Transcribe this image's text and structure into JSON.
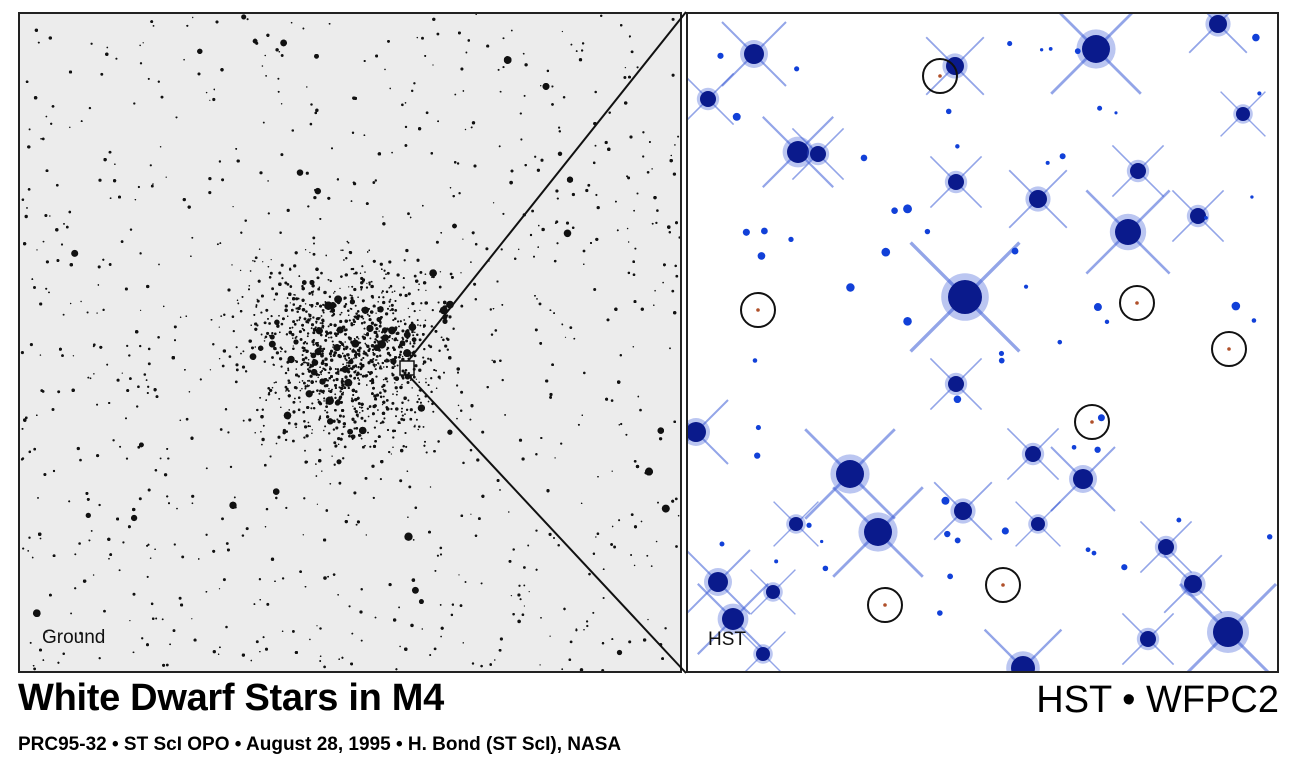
{
  "panels": {
    "ground_label": "Ground",
    "hst_label": "HST"
  },
  "caption": {
    "title": "White Dwarf Stars in M4",
    "instrument": "HST • WFPC2",
    "credit": "PRC95-32 • ST ScI OPO • August 28, 1995 • H. Bond (ST ScI), NASA"
  },
  "colors": {
    "ground_background": "#ececec",
    "ground_stars": "#111111",
    "hst_background": "#ffffff",
    "hst_stars": "#0a1a8c",
    "hst_halo": "#3b5bd6",
    "circle_stroke": "#111111",
    "white_dwarf_dot": "#b0502a"
  },
  "icons": {
    "zoom_box": "square-outline",
    "white_dwarf_marker": "circle-outline"
  }
}
